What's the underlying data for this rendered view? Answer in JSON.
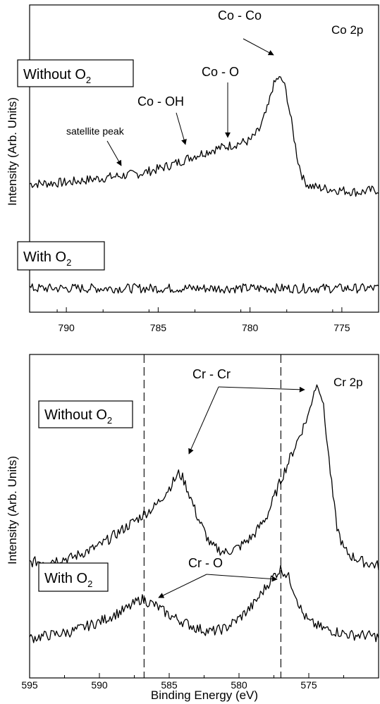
{
  "chart_data": [
    {
      "type": "line",
      "panel_label": "Co 2p",
      "xlabel": "",
      "ylabel": "Intensity (Arb. Units)",
      "xlim": [
        792,
        773
      ],
      "x_reversed": true,
      "xticks": [
        790,
        785,
        780,
        775
      ],
      "grid": false,
      "conditions": [
        {
          "label": "Without O",
          "subscript": "2"
        },
        {
          "label": "With O",
          "subscript": "2"
        }
      ],
      "annotations": [
        {
          "text": "Co - Co",
          "points_to_x": 778.5
        },
        {
          "text": "Co - O",
          "points_to_x": 781.2
        },
        {
          "text": "Co - OH",
          "points_to_x": 783.8
        },
        {
          "text": "satellite peak",
          "points_to_x": 787.0
        }
      ],
      "series": [
        {
          "x": [
            792,
            790,
            788,
            786,
            785,
            784,
            783,
            782,
            781,
            780,
            779.5,
            779,
            778.8,
            778.5,
            778.2,
            778,
            777.7,
            777.4,
            777.1,
            776.8,
            776.5,
            776,
            775.5,
            775,
            774.5,
            774,
            773.5,
            773
          ],
          "y": [
            0.5,
            0.55,
            0.7,
            0.85,
            1.0,
            1.2,
            1.45,
            1.65,
            1.8,
            1.95,
            2.3,
            3.1,
            3.7,
            4.05,
            3.95,
            3.5,
            2.4,
            1.3,
            0.65,
            0.45,
            0.4,
            0.35,
            0.32,
            0.28,
            0.25,
            0.22,
            0.28,
            0.3
          ]
        },
        {
          "x": [
            792,
            788,
            784,
            780,
            776,
            773
          ],
          "y": [
            -3.0,
            -3.0,
            -3.0,
            -3.0,
            -3.0,
            -3.0
          ]
        }
      ]
    },
    {
      "type": "line",
      "panel_label": "Cr 2p",
      "xlabel": "Binding Energy (eV)",
      "ylabel": "Intensity (Arb. Units)",
      "xlim": [
        595,
        570
      ],
      "x_reversed": true,
      "xticks": [
        595,
        590,
        585,
        580,
        575
      ],
      "grid": false,
      "reference_lines_x": [
        586.8,
        577.0
      ],
      "conditions": [
        {
          "label": "Without O",
          "subscript": "2"
        },
        {
          "label": "With O",
          "subscript": "2"
        }
      ],
      "annotations": [
        {
          "text": "Cr - Cr",
          "points_to_x": [
            584.0,
            574.8
          ]
        },
        {
          "text": "Cr - O",
          "points_to_x": [
            586.6,
            577.0
          ]
        }
      ],
      "series": [
        {
          "x": [
            595,
            592,
            590,
            588,
            586,
            585,
            584.3,
            584,
            583.5,
            583,
            582,
            581,
            580,
            579,
            578,
            577,
            576,
            575.5,
            575,
            574.6,
            574.3,
            574,
            573.7,
            573.3,
            573,
            572.5,
            572,
            571,
            570
          ],
          "y": [
            1.25,
            1.32,
            1.5,
            1.8,
            2.1,
            2.38,
            2.6,
            2.52,
            2.25,
            1.95,
            1.5,
            1.4,
            1.48,
            1.65,
            1.95,
            2.5,
            3.0,
            3.25,
            3.5,
            3.88,
            3.95,
            3.7,
            3.1,
            2.3,
            1.8,
            1.45,
            1.35,
            1.25,
            1.2
          ]
        },
        {
          "x": [
            595,
            592,
            590,
            588,
            587,
            586,
            585,
            584,
            583,
            582,
            581,
            580,
            579,
            578,
            577.5,
            577,
            576.5,
            576,
            575.5,
            575,
            574,
            573,
            572,
            571,
            570
          ],
          "y": [
            0.1,
            0.2,
            0.35,
            0.55,
            0.7,
            0.6,
            0.45,
            0.35,
            0.25,
            0.2,
            0.25,
            0.4,
            0.6,
            0.9,
            1.05,
            1.15,
            1.05,
            0.8,
            0.5,
            0.35,
            0.25,
            0.2,
            0.15,
            0.15,
            0.12
          ]
        }
      ]
    }
  ]
}
